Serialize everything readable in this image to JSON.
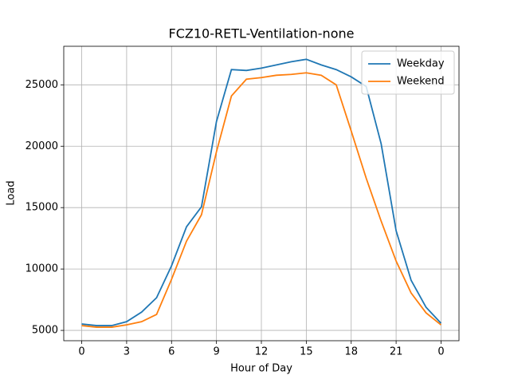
{
  "chart_data": {
    "type": "line",
    "title": "FCZ10-RETL-Ventilation-none",
    "x_label": "Hour of Day",
    "y_label": "Load",
    "x": [
      0,
      1,
      2,
      3,
      4,
      5,
      6,
      7,
      8,
      9,
      10,
      11,
      12,
      13,
      14,
      15,
      16,
      17,
      18,
      19,
      20,
      21,
      22,
      23,
      24
    ],
    "series": [
      {
        "name": "Weekday",
        "color": "#1f77b4",
        "values": [
          5520,
          5390,
          5390,
          5710,
          6490,
          7660,
          10260,
          13440,
          15070,
          22010,
          26240,
          26170,
          26360,
          26620,
          26880,
          27080,
          26620,
          26240,
          25650,
          24870,
          20200,
          13120,
          9090,
          6880,
          5580
        ]
      },
      {
        "name": "Weekend",
        "color": "#ff7f0e",
        "values": [
          5390,
          5260,
          5260,
          5450,
          5710,
          6300,
          9160,
          12270,
          14420,
          19550,
          24090,
          25460,
          25590,
          25780,
          25850,
          25980,
          25780,
          25000,
          21240,
          17400,
          13900,
          10650,
          8050,
          6430,
          5450
        ]
      }
    ],
    "xlim": [
      -1.2,
      25.2
    ],
    "ylim": [
      4160,
      28140
    ],
    "xticks": [
      0,
      3,
      6,
      9,
      12,
      15,
      18,
      21,
      {
        "value": 24,
        "label": "0"
      }
    ],
    "yticks": [
      5000,
      10000,
      15000,
      20000,
      25000
    ],
    "grid": true,
    "legend": "upper right"
  }
}
